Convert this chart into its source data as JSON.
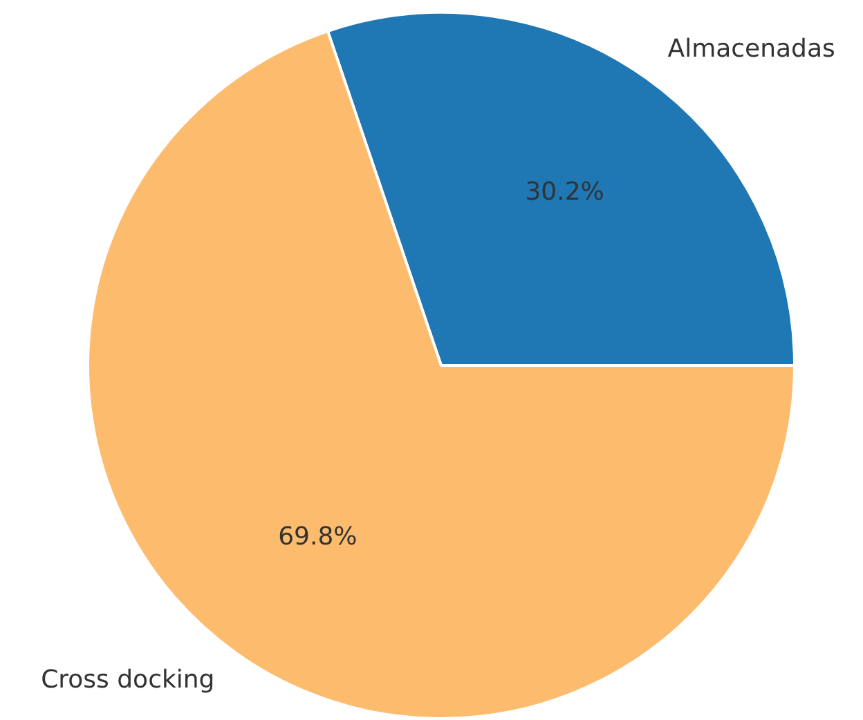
{
  "chart_data": {
    "type": "pie",
    "categories": [
      "Almacenadas",
      "Cross docking"
    ],
    "values": [
      30.2,
      69.8
    ],
    "colors": [
      "#1f77b4",
      "#fdbb6d"
    ],
    "value_labels": [
      "30.2%",
      "69.8%"
    ],
    "legend": false
  }
}
